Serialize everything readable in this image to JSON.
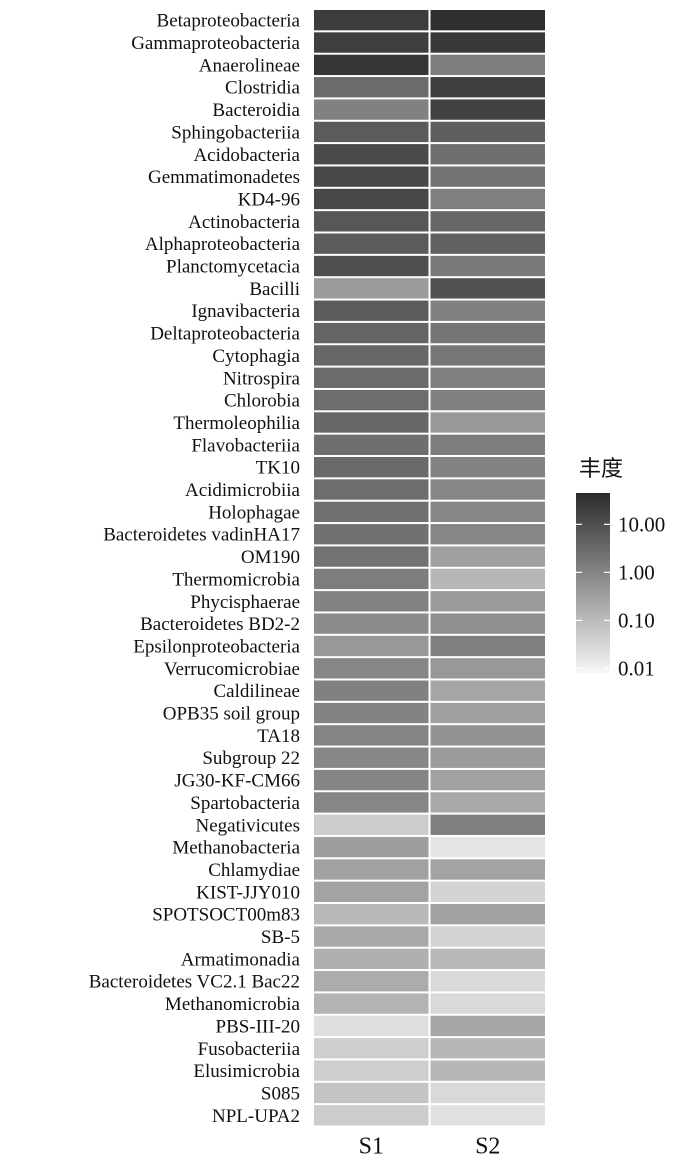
{
  "chart_data": {
    "type": "heatmap",
    "columns": [
      "S1",
      "S2"
    ],
    "scale": "log",
    "legend": {
      "title": "丰度",
      "ticks": [
        {
          "value": 10,
          "label": "10.00"
        },
        {
          "value": 1,
          "label": "1.00"
        },
        {
          "value": 0.1,
          "label": "0.10"
        },
        {
          "value": 0.01,
          "label": "0.01"
        }
      ],
      "range": [
        0.008,
        45
      ],
      "color_low": "#f7f7f7",
      "color_high": "#2b2b2b",
      "placement": "right"
    },
    "rows": [
      {
        "label": "Betaproteobacteria",
        "values": [
          22,
          38
        ]
      },
      {
        "label": "Gammaproteobacteria",
        "values": [
          20,
          26
        ]
      },
      {
        "label": "Anaerolineae",
        "values": [
          28,
          1.4
        ]
      },
      {
        "label": "Clostridia",
        "values": [
          3,
          20
        ]
      },
      {
        "label": "Bacteroidia",
        "values": [
          1.2,
          18
        ]
      },
      {
        "label": "Sphingobacteriia",
        "values": [
          6,
          5
        ]
      },
      {
        "label": "Acidobacteria",
        "values": [
          12,
          2.5
        ]
      },
      {
        "label": "Gemmatimonadetes",
        "values": [
          13,
          2.2
        ]
      },
      {
        "label": "KD4-96",
        "values": [
          14,
          1.3
        ]
      },
      {
        "label": "Actinobacteria",
        "values": [
          7,
          3.5
        ]
      },
      {
        "label": "Alphaproteobacteria",
        "values": [
          6,
          4.5
        ]
      },
      {
        "label": "Planctomycetacia",
        "values": [
          10,
          1.6
        ]
      },
      {
        "label": "Bacilli",
        "values": [
          0.4,
          9
        ]
      },
      {
        "label": "Ignavibacteria",
        "values": [
          6,
          1.2
        ]
      },
      {
        "label": "Deltaproteobacteria",
        "values": [
          4,
          2
        ]
      },
      {
        "label": "Cytophagia",
        "values": [
          3.5,
          1.8
        ]
      },
      {
        "label": "Nitrospira",
        "values": [
          3,
          1.3
        ]
      },
      {
        "label": "Chlorobia",
        "values": [
          2.8,
          1.2
        ]
      },
      {
        "label": "Thermoleophilia",
        "values": [
          3.5,
          0.45
        ]
      },
      {
        "label": "Flavobacteriia",
        "values": [
          2.5,
          1.4
        ]
      },
      {
        "label": "TK10",
        "values": [
          3.2,
          1.1
        ]
      },
      {
        "label": "Acidimicrobiia",
        "values": [
          2.7,
          0.9
        ]
      },
      {
        "label": "Holophagae",
        "values": [
          2.4,
          0.9
        ]
      },
      {
        "label": "Bacteroidetes vadinHA17",
        "values": [
          2.3,
          0.95
        ]
      },
      {
        "label": "OM190",
        "values": [
          2.2,
          0.32
        ]
      },
      {
        "label": "Thermomicrobia",
        "values": [
          1.4,
          0.12
        ]
      },
      {
        "label": "Phycisphaerae",
        "values": [
          1.1,
          0.4
        ]
      },
      {
        "label": "Bacteroidetes BD2-2",
        "values": [
          0.75,
          0.65
        ]
      },
      {
        "label": "Epsilonproteobacteria",
        "values": [
          0.45,
          1.3
        ]
      },
      {
        "label": "Verrucomicrobiae",
        "values": [
          0.95,
          0.45
        ]
      },
      {
        "label": "Caldilineae",
        "values": [
          1.2,
          0.25
        ]
      },
      {
        "label": "OPB35 soil group",
        "values": [
          1.1,
          0.32
        ]
      },
      {
        "label": "TA18",
        "values": [
          1.05,
          0.55
        ]
      },
      {
        "label": "Subgroup 22",
        "values": [
          0.9,
          0.4
        ]
      },
      {
        "label": "JG30-KF-CM66",
        "values": [
          1.0,
          0.3
        ]
      },
      {
        "label": "Spartobacteria",
        "values": [
          0.95,
          0.22
        ]
      },
      {
        "label": "Negativicutes",
        "values": [
          0.05,
          1.3
        ]
      },
      {
        "label": "Methanobacteria",
        "values": [
          0.35,
          0.018
        ]
      },
      {
        "label": "Chlamydiae",
        "values": [
          0.3,
          0.28
        ]
      },
      {
        "label": "KIST-JJY010",
        "values": [
          0.28,
          0.035
        ]
      },
      {
        "label": "SPOTSOCT00m83",
        "values": [
          0.11,
          0.3
        ]
      },
      {
        "label": "SB-5",
        "values": [
          0.22,
          0.035
        ]
      },
      {
        "label": "Armatimonadia",
        "values": [
          0.16,
          0.11
        ]
      },
      {
        "label": "Bacteroidetes VC2.1 Bac22",
        "values": [
          0.19,
          0.028
        ]
      },
      {
        "label": "Methanomicrobia",
        "values": [
          0.14,
          0.028
        ]
      },
      {
        "label": "PBS-III-20",
        "values": [
          0.022,
          0.25
        ]
      },
      {
        "label": "Fusobacteriia",
        "values": [
          0.045,
          0.12
        ]
      },
      {
        "label": "Elusimicrobia",
        "values": [
          0.045,
          0.12
        ]
      },
      {
        "label": "S085",
        "values": [
          0.07,
          0.028
        ]
      },
      {
        "label": "NPL-UPA2",
        "values": [
          0.05,
          0.02
        ]
      }
    ]
  }
}
